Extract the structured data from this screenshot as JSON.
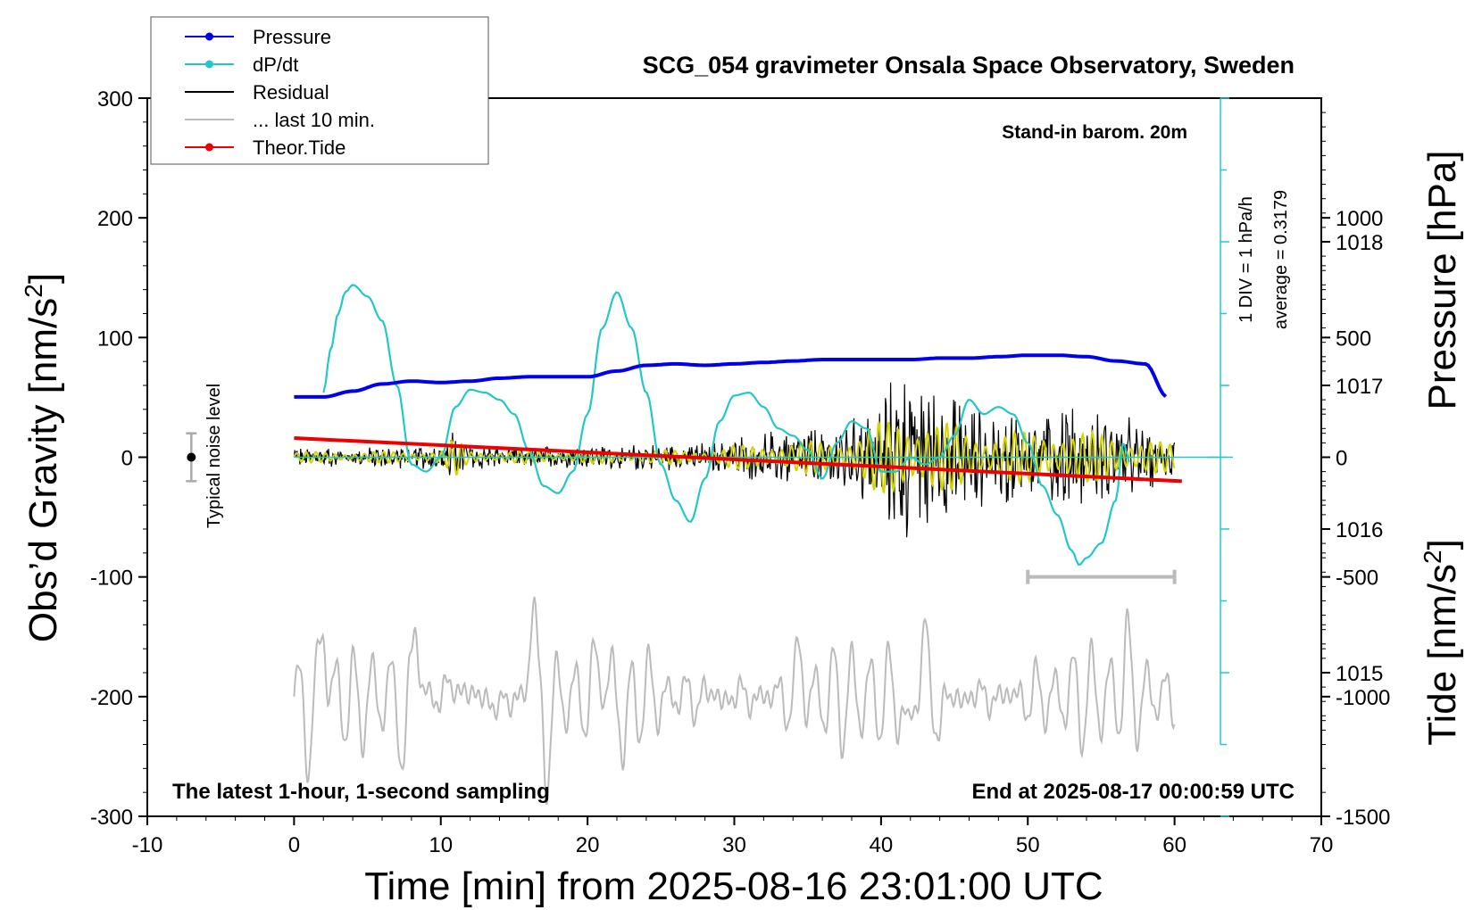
{
  "chart_data": {
    "type": "line",
    "title": "SCG_054 gravimeter Onsala Space Observatory, Sweden",
    "xlabel": "Time [min] from 2025-08-16 23:01:00 UTC",
    "ylabel_left": "Obs’d Gravity [nm/s",
    "ylabel_left_sup": "2",
    "ylabel_left_close": "]",
    "ylabel_right_pressure": "Pressure [hPa]",
    "ylabel_right_tide": "Tide [nm/s",
    "ylabel_right_tide_sup": "2",
    "ylabel_right_tide_close": "]",
    "xlim": [
      -10,
      70
    ],
    "ylim": [
      -300,
      300
    ],
    "pressure_lim": [
      1014,
      1019
    ],
    "tide_lim": [
      -1500,
      1500
    ],
    "x_ticks": [
      "-10",
      "0",
      "10",
      "20",
      "30",
      "40",
      "50",
      "60",
      "70"
    ],
    "x_tick_values": [
      -10,
      0,
      10,
      20,
      30,
      40,
      50,
      60,
      70
    ],
    "y_ticks": [
      "300",
      "200",
      "100",
      "0",
      "-100",
      "-200",
      "-300"
    ],
    "y_tick_values": [
      300,
      200,
      100,
      0,
      -100,
      -200,
      -300
    ],
    "pressure_ticks": [
      "1018",
      "1017",
      "1016",
      "1015"
    ],
    "pressure_tick_values": [
      1018,
      1017,
      1016,
      1015
    ],
    "tide_ticks": [
      "1000",
      "500",
      "0",
      "-500",
      "-1000",
      "-1500"
    ],
    "tide_tick_values": [
      1000,
      500,
      0,
      -500,
      -1000,
      -1500
    ],
    "annotations": {
      "barometer": "Stand-in barom. 20m",
      "div_scale": "1 DIV = 1 hPa/h",
      "average": "average = 0.3179",
      "noise": "Typical noise level",
      "bottom_left": "The latest 1-hour, 1-second sampling",
      "bottom_right": "End at 2025-08-17 00:00:59 UTC"
    },
    "legend_position": "top-left",
    "legend": [
      {
        "label": "Pressure",
        "color": "#0000ee",
        "marker": true
      },
      {
        "label": "dP/dt",
        "color": "#22c8c8",
        "marker": true
      },
      {
        "label": "Residual",
        "color": "#000000",
        "marker": false
      },
      {
        "label": "... last 10 min.",
        "color": "#bbbbbb",
        "marker": false
      },
      {
        "label": "Theor.Tide",
        "color": "#ee0000",
        "marker": true
      }
    ],
    "colors": {
      "pressure": "#0000ee",
      "dpdt": "#22c8c8",
      "residual": "#000000",
      "filtered": "#d4d400",
      "last10": "#bbbbbb",
      "tide": "#ee0000"
    },
    "series": [
      {
        "name": "Pressure",
        "axis": "pressure_hPa",
        "x": [
          0,
          2,
          4,
          6,
          8,
          10,
          12,
          14,
          16,
          18,
          20,
          22,
          24,
          26,
          28,
          30,
          32,
          34,
          36,
          38,
          40,
          42,
          44,
          46,
          48,
          50,
          52,
          54,
          56,
          58,
          59.5
        ],
        "y": [
          1016.92,
          1016.92,
          1016.96,
          1017.01,
          1017.03,
          1017.02,
          1017.03,
          1017.05,
          1017.06,
          1017.06,
          1017.06,
          1017.1,
          1017.14,
          1017.15,
          1017.14,
          1017.15,
          1017.16,
          1017.17,
          1017.18,
          1017.18,
          1017.18,
          1017.18,
          1017.19,
          1017.19,
          1017.2,
          1017.21,
          1017.21,
          1017.2,
          1017.17,
          1017.15,
          1016.92
        ]
      },
      {
        "name": "dP/dt",
        "axis": "pressure_hPa",
        "baseline": 1016.5,
        "x": [
          2,
          2.5,
          3,
          3.5,
          4,
          5,
          6,
          7,
          8,
          9,
          10,
          11,
          12,
          13,
          14,
          15,
          16,
          17,
          18,
          19,
          20,
          21,
          22,
          23,
          24,
          25,
          26,
          27,
          28,
          29,
          30,
          31,
          32,
          33,
          34,
          35,
          36,
          37,
          38,
          39,
          40,
          41,
          42,
          43,
          44,
          45,
          46,
          47,
          48,
          49,
          50,
          51,
          52,
          53,
          53.5,
          54,
          55,
          56,
          56.5,
          57
        ],
        "y": [
          1016.95,
          1017.25,
          1017.5,
          1017.65,
          1017.7,
          1017.62,
          1017.45,
          1017.0,
          1016.45,
          1016.4,
          1016.5,
          1016.85,
          1016.97,
          1016.95,
          1016.9,
          1016.8,
          1016.55,
          1016.3,
          1016.25,
          1016.4,
          1016.8,
          1017.4,
          1017.65,
          1017.4,
          1016.95,
          1016.45,
          1016.2,
          1016.05,
          1016.35,
          1016.75,
          1016.93,
          1016.95,
          1016.85,
          1016.7,
          1016.65,
          1016.55,
          1016.35,
          1016.6,
          1016.75,
          1016.7,
          1016.4,
          1016.4,
          1016.5,
          1016.45,
          1016.5,
          1016.65,
          1016.9,
          1016.8,
          1016.85,
          1016.8,
          1016.6,
          1016.3,
          1016.1,
          1015.85,
          1015.75,
          1015.8,
          1015.9,
          1016.2,
          1016.6,
          1016.45
        ]
      },
      {
        "name": "Residual",
        "axis": "gravity",
        "envelope_x": [
          0,
          5,
          10,
          11,
          12,
          15,
          20,
          25,
          29,
          30,
          33,
          36,
          38,
          40,
          41,
          42,
          43,
          44,
          45,
          46,
          48,
          50,
          52,
          54,
          56,
          58,
          60
        ],
        "envelope_y": [
          9,
          9,
          11,
          30,
          12,
          10,
          10,
          12,
          14,
          20,
          25,
          28,
          35,
          60,
          70,
          75,
          70,
          60,
          55,
          45,
          45,
          42,
          50,
          42,
          40,
          30,
          22
        ]
      },
      {
        "name": "... last 10 min.",
        "axis": "gravity",
        "offset": -200,
        "peaks": [
          {
            "x": 1.0,
            "y": -240
          },
          {
            "x": 2.0,
            "y": -130
          },
          {
            "x": 4.2,
            "y": -215
          },
          {
            "x": 7.5,
            "y": -250
          },
          {
            "x": 8.3,
            "y": -125
          },
          {
            "x": 11.0,
            "y": -178
          },
          {
            "x": 14.0,
            "y": -220
          },
          {
            "x": 16.3,
            "y": -105
          },
          {
            "x": 17.2,
            "y": -265
          },
          {
            "x": 21.0,
            "y": -150
          },
          {
            "x": 22.5,
            "y": -240
          },
          {
            "x": 34.5,
            "y": -165
          },
          {
            "x": 41.8,
            "y": -240
          },
          {
            "x": 43.0,
            "y": -140
          },
          {
            "x": 44.0,
            "y": -235
          },
          {
            "x": 56.7,
            "y": -165
          }
        ]
      },
      {
        "name": "Theor.Tide",
        "axis": "tide",
        "x": [
          0,
          60.5
        ],
        "y": [
          80,
          -100
        ]
      }
    ],
    "period_bar": {
      "x": [
        50,
        60
      ],
      "gravity": -100
    },
    "noise_bar": {
      "x": -7,
      "center": 0,
      "range": [
        -20,
        20
      ]
    }
  }
}
